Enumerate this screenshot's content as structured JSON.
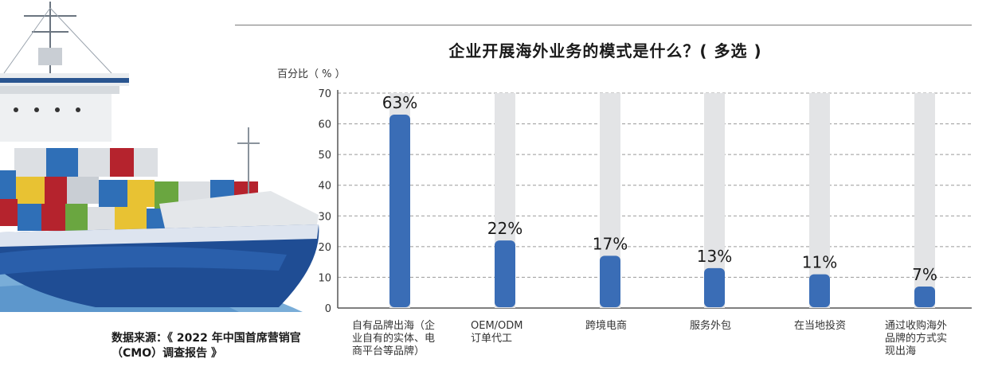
{
  "source_note": "数据来源：《 2022 年中国首席营销官（CMO）调查报告 》",
  "chart_data": {
    "type": "bar",
    "title": "企业开展海外业务的模式是什么？( 多选 )",
    "ylabel": "百分比（ % ）",
    "xlabel": "",
    "ylim": [
      0,
      70
    ],
    "yticks": [
      0,
      10,
      20,
      30,
      40,
      50,
      60,
      70
    ],
    "grid": true,
    "categories": [
      "自有品牌出海（企业自有的实体、电商平台等品牌）",
      "OEM/ODM 订单代工",
      "跨境电商",
      "服务外包",
      "在当地投资",
      "通过收购海外品牌的方式实现出海"
    ],
    "category_lines": [
      [
        "自有品牌出海（企",
        "业自有的实体、电",
        "商平台等品牌）"
      ],
      [
        "OEM/ODM",
        "订单代工"
      ],
      [
        "跨境电商"
      ],
      [
        "服务外包"
      ],
      [
        "在当地投资"
      ],
      [
        "通过收购海外",
        "品牌的方式实",
        "现出海"
      ]
    ],
    "values": [
      63,
      22,
      17,
      13,
      11,
      7
    ],
    "data_labels": [
      "63%",
      "22%",
      "17%",
      "13%",
      "11%",
      "7%"
    ],
    "colors": {
      "bar": "#3a6db6",
      "bar_track": "#e3e4e6",
      "grid": "#9a9a9a",
      "axis": "#555555"
    }
  }
}
